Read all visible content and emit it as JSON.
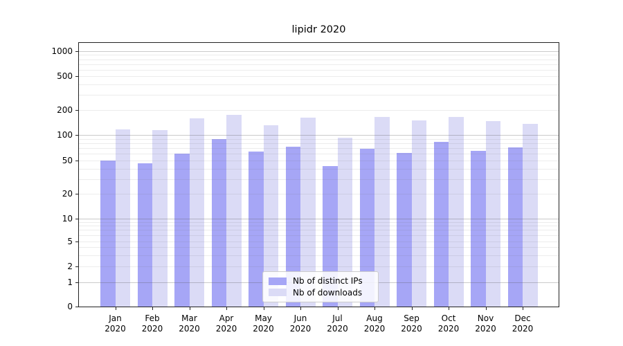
{
  "title": "lipidr 2020",
  "chart_data": {
    "type": "bar",
    "title": "lipidr 2020",
    "categories": [
      "Jan",
      "Feb",
      "Mar",
      "Apr",
      "May",
      "Jun",
      "Jul",
      "Aug",
      "Sep",
      "Oct",
      "Nov",
      "Dec"
    ],
    "year_label": "2020",
    "series": [
      {
        "name": "Nb of distinct IPs",
        "color": "#a6a6f6",
        "values": [
          50,
          46,
          60,
          89,
          64,
          73,
          43,
          69,
          61,
          83,
          65,
          71
        ]
      },
      {
        "name": "Nb of downloads",
        "color": "#dbdbf6",
        "values": [
          117,
          115,
          160,
          175,
          130,
          162,
          93,
          165,
          150,
          165,
          147,
          136
        ]
      }
    ],
    "yticks": [
      0,
      1,
      2,
      5,
      10,
      20,
      50,
      100,
      200,
      500,
      1000
    ],
    "scale": "symlog",
    "ylim": [
      0,
      1259
    ],
    "xlabel": "",
    "ylabel": "",
    "grid": true,
    "legend_position": "lower center"
  }
}
